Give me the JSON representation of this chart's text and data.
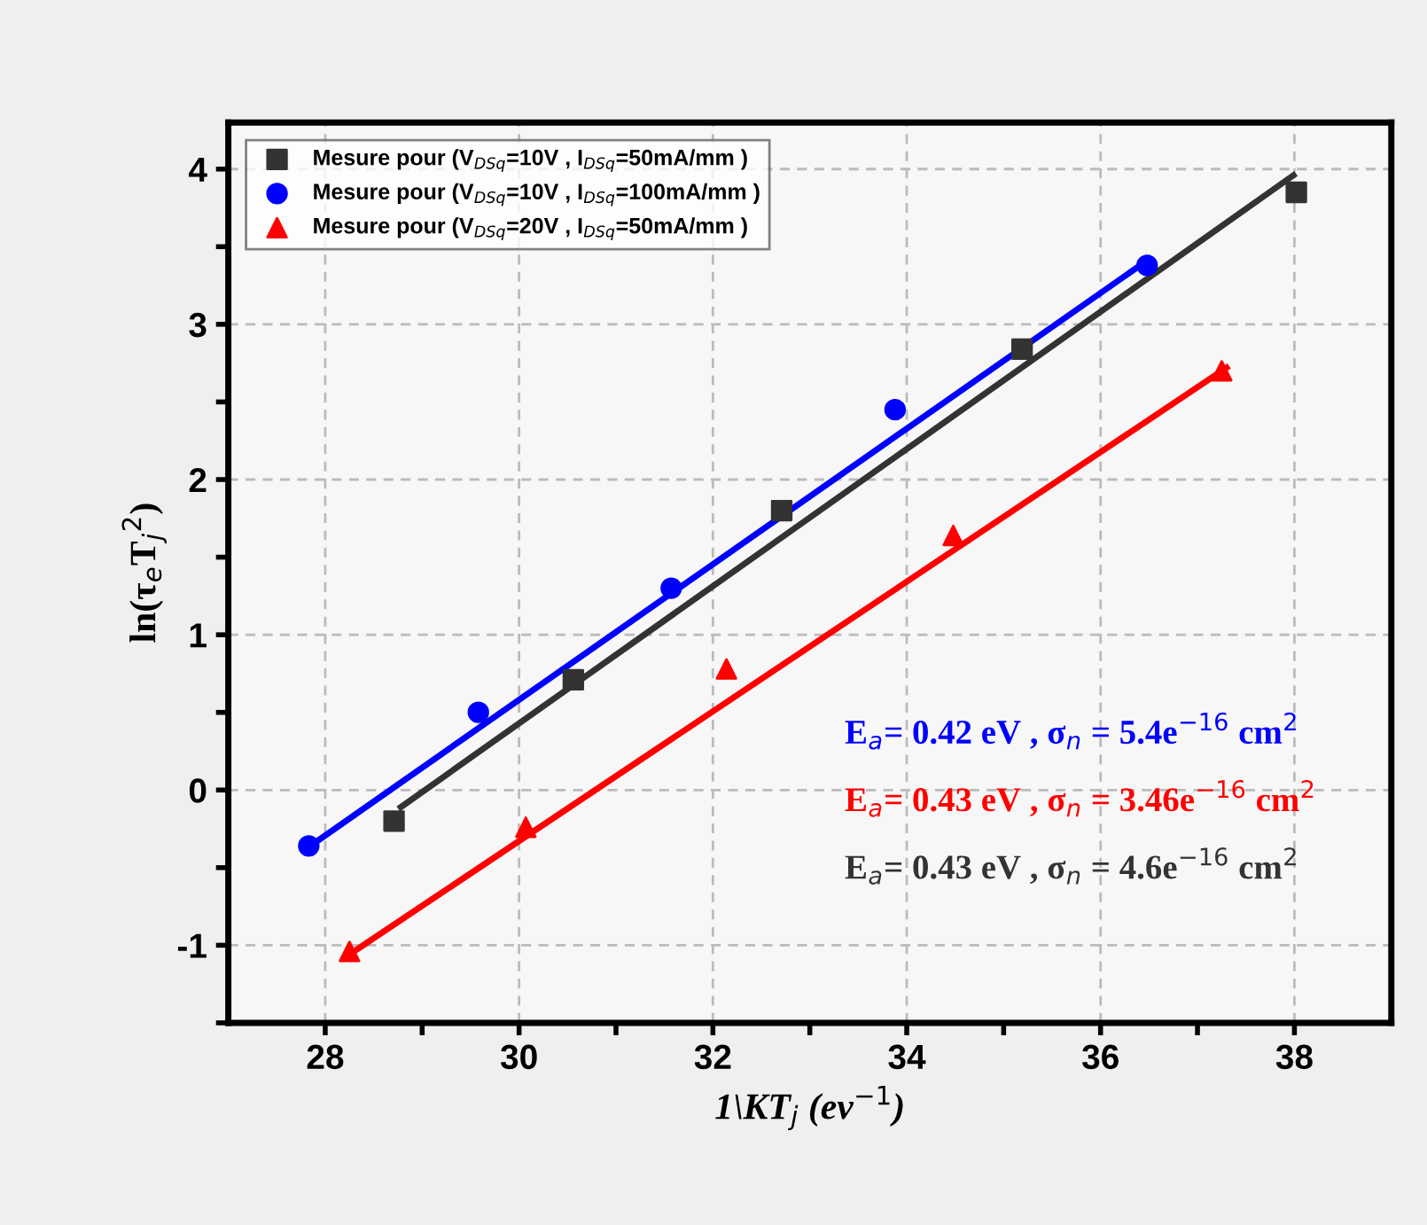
{
  "chart_data": {
    "type": "scatter",
    "xlabel": "1\\KT$_{j}$ (ev$^{−1}$)",
    "ylabel": "ln(τ$_{e}$T$_{j}$$^{2}$)",
    "xlim": [
      27,
      39
    ],
    "ylim": [
      -1.5,
      4.3
    ],
    "xticks": [
      28,
      {
        "value": 29,
        "label": null
      },
      30,
      {
        "value": 31,
        "label": null
      },
      32,
      {
        "value": 33,
        "label": null
      },
      34,
      {
        "value": 35,
        "label": null
      },
      36,
      {
        "value": 37,
        "label": null
      },
      38
    ],
    "yticks": [
      {
        "value": -1.5,
        "label": null
      },
      -1,
      {
        "value": -0.5,
        "label": null
      },
      0,
      {
        "value": 0.5,
        "label": null
      },
      1,
      {
        "value": 1.5,
        "label": null
      },
      2,
      {
        "value": 2.5,
        "label": null
      },
      3,
      {
        "value": 3.5,
        "label": null
      },
      4
    ],
    "grid": true,
    "legend": "top left",
    "series": [
      {
        "name": "Mesure pour (V$_{DSq}$=10V , I$_{DSq}$=50mA/mm )",
        "color": "#333333",
        "marker": "square",
        "x": [
          28.71,
          30.56,
          32.71,
          35.19,
          38.02
        ],
        "values": [
          -0.2,
          0.71,
          1.8,
          2.84,
          3.85
        ]
      },
      {
        "name": "Mesure pour (V$_{DSq}$=10V , I$_{DSq}$=100mA/mm )",
        "color": "#0000ff",
        "marker": "circle",
        "x": [
          27.83,
          29.58,
          31.57,
          33.88,
          36.48
        ],
        "values": [
          -0.36,
          0.5,
          1.3,
          2.45,
          3.38
        ]
      },
      {
        "name": "Mesure pour (V$_{DSq}$=20V , I$_{DSq}$=50mA/mm )",
        "color": "#ff0000",
        "marker": "triangle",
        "x": [
          28.25,
          30.07,
          32.14,
          34.48,
          37.25
        ],
        "values": [
          -1.04,
          -0.24,
          0.78,
          1.64,
          2.7
        ]
      },
      {
        "type": "line",
        "color": "#0000ff",
        "x": [
          27.8,
          36.5
        ],
        "values": [
          -0.38,
          3.42
        ]
      },
      {
        "type": "line",
        "color": "#ff0000",
        "x": [
          28.2,
          37.3
        ],
        "values": [
          -1.08,
          2.72
        ]
      },
      {
        "type": "line",
        "color": "#333333",
        "x": [
          28.78,
          37.99
        ],
        "values": [
          -0.11,
          3.96
        ]
      }
    ],
    "annotations": [
      "E$_{a}$= 0.42 eV , σ$_{n}$ = 5.4e$^{−16}$ cm$^{2}$",
      "E$_{a}$= 0.43 eV , σ$_{n}$ = 3.46e$^{−16}$ cm$^{2}$",
      "E$_{a}$= 0.43 eV , σ$_{n}$ = 4.6e$^{−16}$ cm$^{2}$"
    ]
  }
}
